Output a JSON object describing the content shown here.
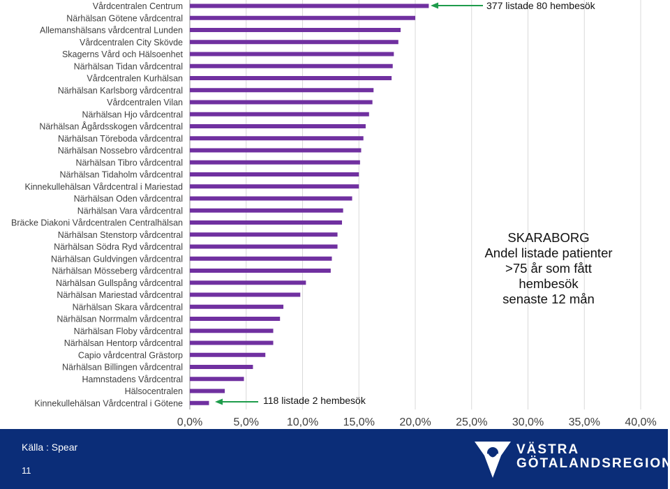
{
  "chart_data": {
    "type": "bar",
    "orientation": "horizontal",
    "categories": [
      "Vårdcentralen Centrum",
      "Närhälsan Götene vårdcentral",
      "Allemanshälsans vårdcentral Lunden",
      "Vårdcentralen City Skövde",
      "Skagerns Vård och Hälsoenhet",
      "Närhälsan Tidan vårdcentral",
      "Vårdcentralen Kurhälsan",
      "Närhälsan Karlsborg vårdcentral",
      "Vårdcentralen Vilan",
      "Närhälsan Hjo vårdcentral",
      "Närhälsan Ågårdsskogen vårdcentral",
      "Närhälsan Töreboda vårdcentral",
      "Närhälsan Nossebro vårdcentral",
      "Närhälsan Tibro vårdcentral",
      "Närhälsan Tidaholm vårdcentral",
      "Kinnekullehälsan Vårdcentral i Mariestad",
      "Närhälsan Oden vårdcentral",
      "Närhälsan Vara vårdcentral",
      "Bräcke Diakoni Vårdcentralen Centralhälsan",
      "Närhälsan Stenstorp vårdcentral",
      "Närhälsan Södra Ryd vårdcentral",
      "Närhälsan Guldvingen vårdcentral",
      "Närhälsan Mösseberg vårdcentral",
      "Närhälsan Gullspång vårdcentral",
      "Närhälsan Mariestad vårdcentral",
      "Närhälsan Skara vårdcentral",
      "Närhälsan Norrmalm vårdcentral",
      "Närhälsan Floby vårdcentral",
      "Närhälsan Hentorp vårdcentral",
      "Capio vårdcentral Grästorp",
      "Närhälsan Billingen vårdcentral",
      "Hamnstadens Vårdcentral",
      "Hälsocentralen",
      "Kinnekullehälsan Vårdcentral i Götene"
    ],
    "values": [
      21.2,
      20.0,
      18.7,
      18.5,
      18.1,
      18.0,
      17.9,
      16.3,
      16.2,
      15.9,
      15.6,
      15.4,
      15.2,
      15.1,
      15.0,
      15.0,
      14.4,
      13.6,
      13.5,
      13.1,
      13.1,
      12.6,
      12.5,
      10.3,
      9.8,
      8.3,
      8.0,
      7.4,
      7.4,
      6.7,
      5.6,
      4.8,
      3.1,
      1.7
    ],
    "xlim": [
      0,
      40
    ],
    "x_ticks": [
      "0,0%",
      "5,0%",
      "10,0%",
      "15,0%",
      "20,0%",
      "25,0%",
      "30,0%",
      "35,0%",
      "40,0%"
    ],
    "grid": true,
    "bar_color": "#7030a0",
    "title_lines": [
      "SKARABORG",
      "Andel listade patienter",
      ">75 år som fått",
      "hembesök",
      "senaste 12 mån"
    ],
    "annotations": {
      "top": "377 listade 80 hembesök",
      "bottom": "118 listade 2 hembesök",
      "arrow_color": "#1e9c4b"
    }
  },
  "footer": {
    "source": "Källa : Spear",
    "page_number": "11",
    "logo_line1": "VÄSTRA",
    "logo_line2": "GÖTALANDSREGIONEN",
    "band_color": "#0b2d78"
  }
}
